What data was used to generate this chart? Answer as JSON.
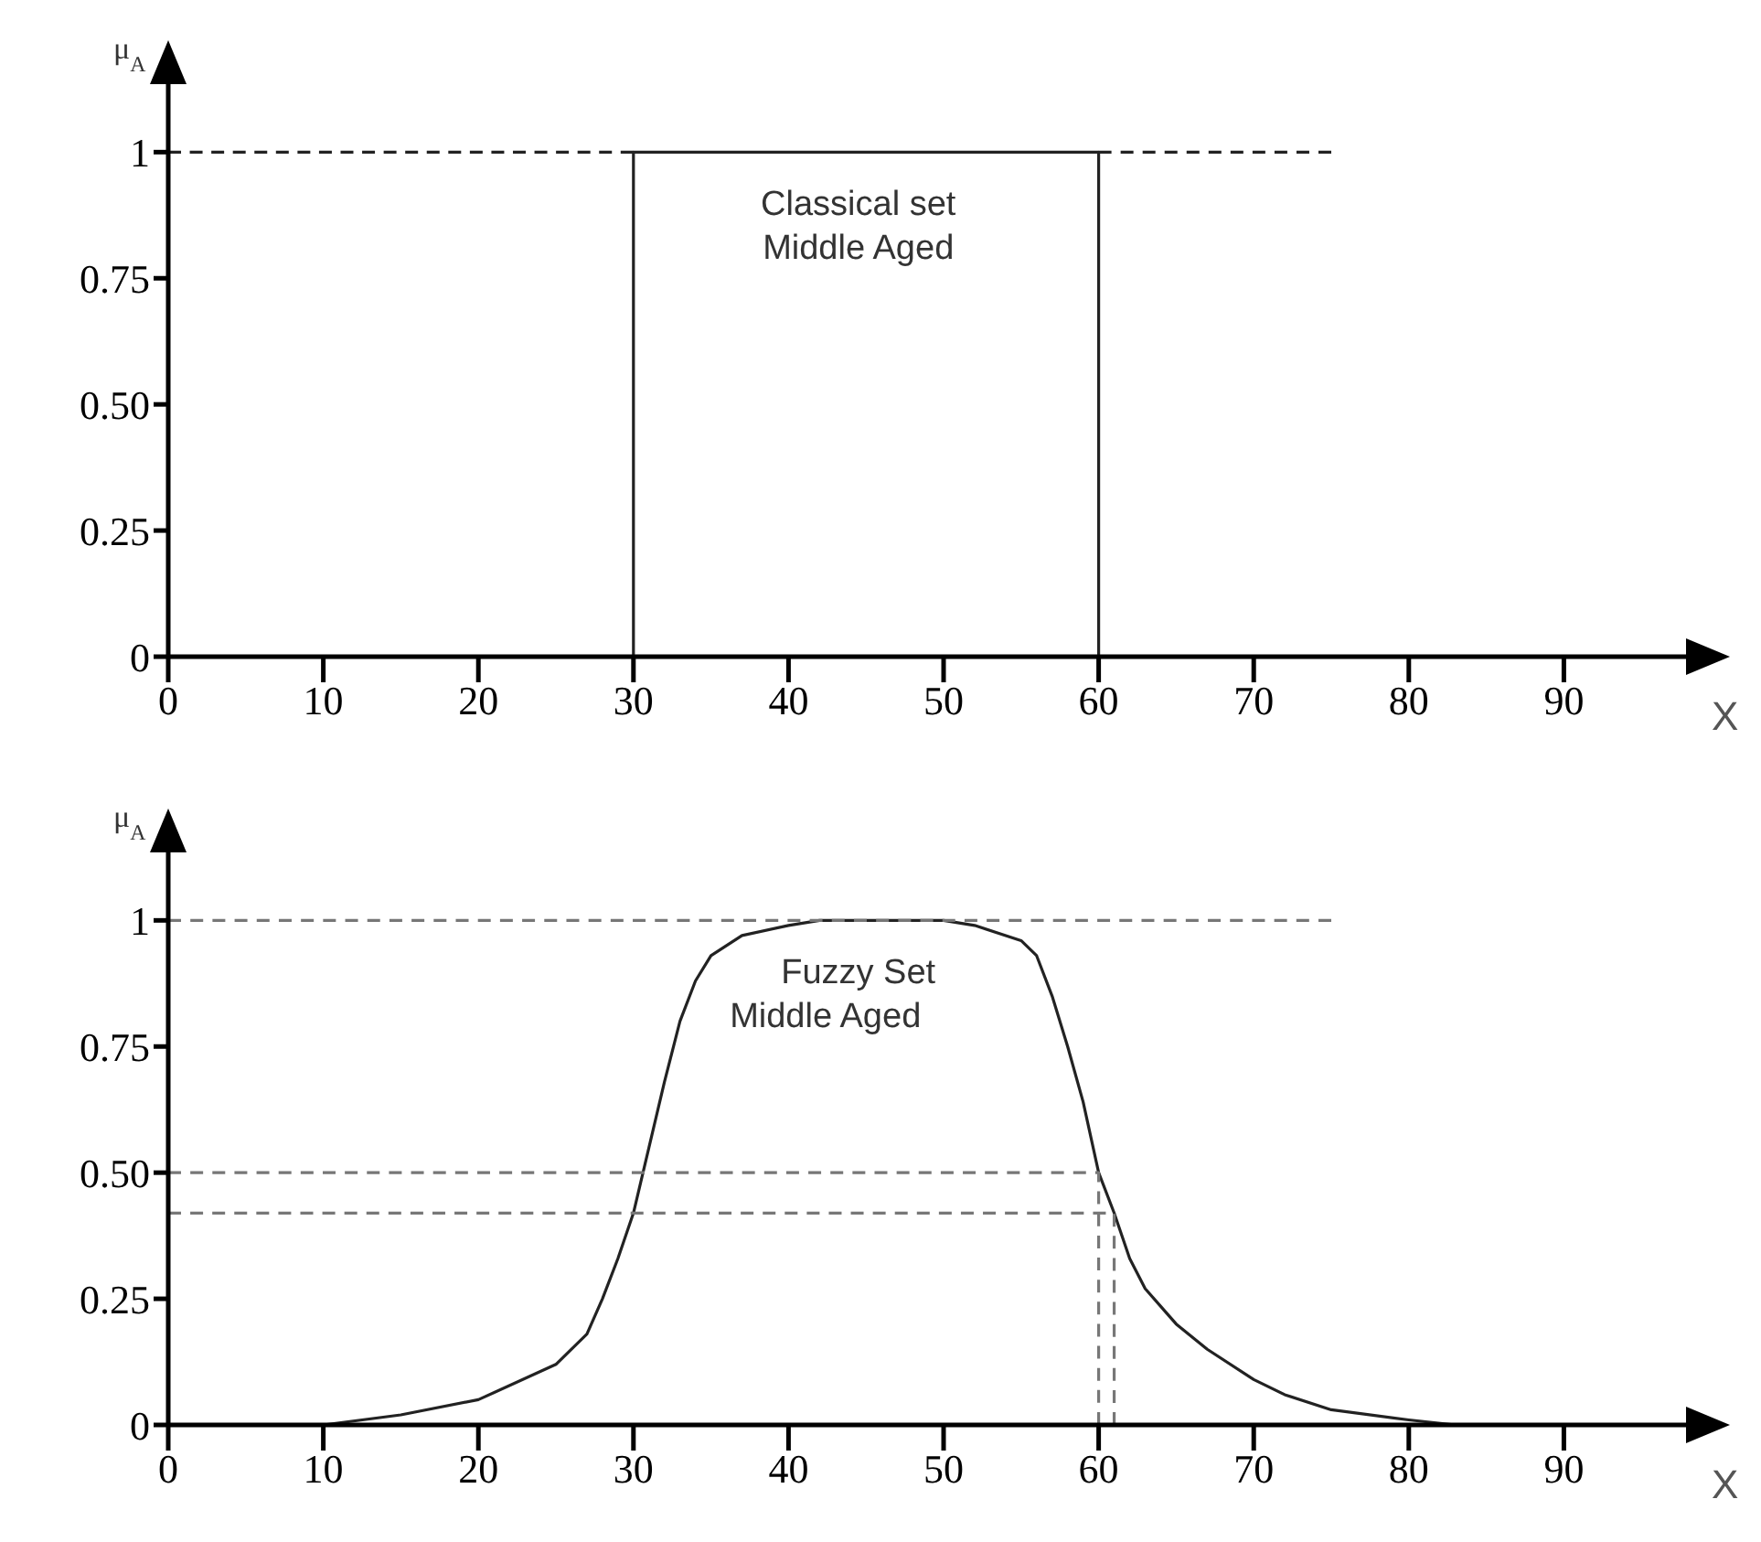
{
  "chart_data": [
    {
      "type": "line",
      "xlabel": "X",
      "ylabel": "μ$_{A}$",
      "xlim": [
        0,
        100
      ],
      "ylim": [
        0,
        1.2
      ],
      "xticks": [
        0,
        10,
        20,
        30,
        40,
        50,
        60,
        70,
        80,
        90
      ],
      "yticks": [
        0,
        0.25,
        {
          "value": 0.5,
          "label": "0.50"
        },
        0.75,
        1
      ],
      "annotations": [
        "Classical set\nMiddle Aged"
      ],
      "series": [
        {
          "color": "#222222",
          "x": [
            0,
            30,
            30,
            60,
            60,
            90
          ],
          "values": [
            0,
            0,
            1,
            1,
            0,
            0
          ]
        },
        {
          "color": "#222222",
          "line_style": "dashed",
          "x": [
            0,
            30
          ],
          "values": [
            1,
            1
          ]
        },
        {
          "color": "#222222",
          "line_style": "dashed",
          "x": [
            60,
            75
          ],
          "values": [
            1,
            1
          ]
        }
      ]
    },
    {
      "type": "line",
      "xlabel": "X",
      "ylabel": "μ$_{A}$",
      "xlim": [
        0,
        100
      ],
      "ylim": [
        0,
        1.2
      ],
      "xticks": [
        0,
        10,
        20,
        30,
        40,
        50,
        60,
        70,
        80,
        90
      ],
      "yticks": [
        0,
        0.25,
        {
          "value": 0.5,
          "label": "0.50"
        },
        0.75,
        1
      ],
      "annotations": [
        "Fuzzy Set\nMiddle Aged"
      ],
      "series": [
        {
          "color": "#222222",
          "x": [
            10,
            15,
            20,
            25,
            27,
            28,
            29,
            30,
            31,
            32,
            33,
            34,
            35,
            37,
            40,
            42,
            50,
            52,
            55,
            56,
            57,
            58,
            59,
            60,
            61,
            62,
            63,
            65,
            67,
            70,
            72,
            75,
            80,
            83
          ],
          "values": [
            0,
            0.02,
            0.05,
            0.12,
            0.18,
            0.25,
            0.33,
            0.42,
            0.55,
            0.68,
            0.8,
            0.88,
            0.93,
            0.97,
            0.99,
            1,
            1,
            0.99,
            0.96,
            0.93,
            0.85,
            0.75,
            0.64,
            0.5,
            0.42,
            0.33,
            0.27,
            0.2,
            0.15,
            0.09,
            0.06,
            0.03,
            0.01,
            0
          ]
        },
        {
          "color": "#777777",
          "line_style": "dashed",
          "x": [
            0,
            75
          ],
          "values": [
            1,
            1
          ]
        },
        {
          "color": "#777777",
          "line_style": "dashed",
          "x": [
            0,
            60,
            60
          ],
          "values": [
            0.5,
            0.5,
            0
          ]
        },
        {
          "color": "#777777",
          "line_style": "dashed",
          "x": [
            0,
            61,
            61
          ],
          "values": [
            0.42,
            0.42,
            0
          ]
        }
      ]
    }
  ]
}
